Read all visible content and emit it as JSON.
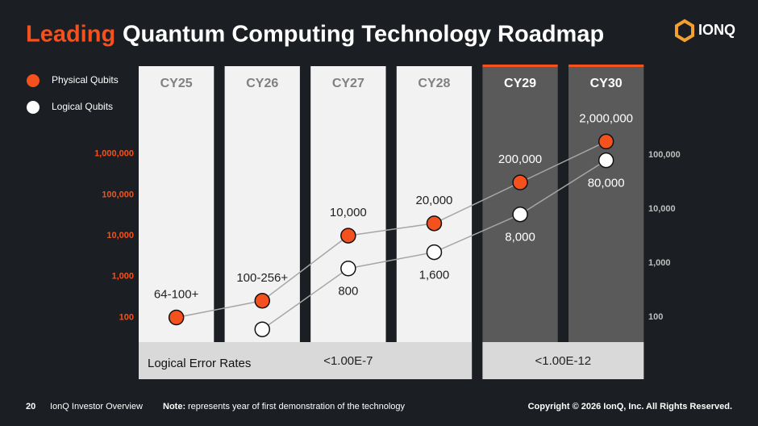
{
  "header": {
    "title_highlight": "Leading",
    "title": "Quantum Computing Technology Roadmap",
    "logo": "IONQ"
  },
  "chart_data": {
    "type": "line",
    "log_scale": true,
    "categories": [
      "CY25",
      "CY26",
      "CY27",
      "CY28",
      "CY29",
      "CY30"
    ],
    "series": [
      {
        "name": "Physical Qubits",
        "color": "#f4511e",
        "values": [
          100,
          256,
          10000,
          20000,
          200000,
          2000000
        ],
        "value_labels": [
          "64-100+",
          "100-256+",
          "10,000",
          "20,000",
          "200,000",
          "2,000,000"
        ]
      },
      {
        "name": "Logical Qubits",
        "color": "#ffffff",
        "axis": "y2",
        "values": [
          null,
          60,
          800,
          1600,
          8000,
          80000
        ],
        "value_labels": [
          null,
          null,
          "800",
          "1,600",
          "8,000",
          "80,000"
        ]
      }
    ],
    "ylim": [
      30,
      10000000
    ],
    "yticks": [
      100,
      {
        "value": 1000,
        "label": "1,000"
      },
      {
        "value": 10000,
        "label": "10,000"
      },
      {
        "value": 100000,
        "label": "100,000"
      },
      {
        "value": 1000000,
        "label": "1,000,000"
      }
    ],
    "y2lim": [
      40,
      600000
    ],
    "y2ticks": [
      100,
      {
        "value": 1000,
        "label": "1,000"
      },
      {
        "value": 10000,
        "label": "10,000"
      },
      {
        "value": 100000,
        "label": "100,000"
      }
    ],
    "error_rates": {
      "label": "Logical Error Rates",
      "values": [
        "<1.00E-7",
        "<1.00E-12"
      ]
    }
  },
  "footer": {
    "page": "20",
    "deck": "IonQ Investor Overview",
    "note_label": "Note:",
    "note": "represents year of first demonstration of the technology",
    "copyright": "Copyright © 2026 IonQ, Inc. All Rights Reserved."
  }
}
